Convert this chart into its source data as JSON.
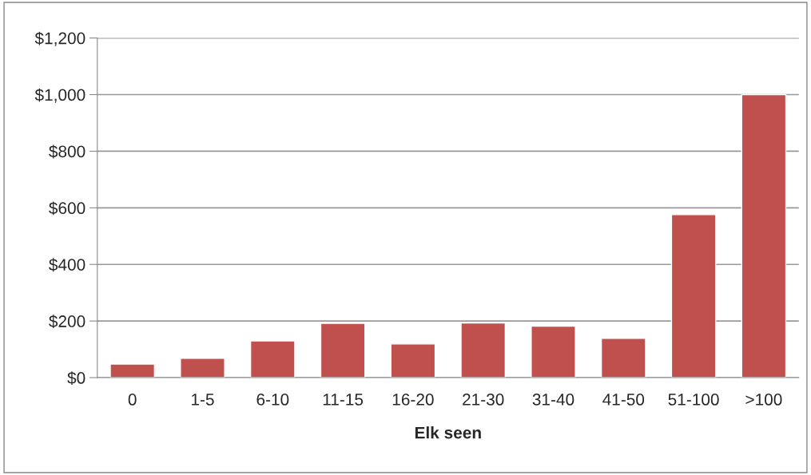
{
  "chart_data": {
    "type": "bar",
    "xlabel": "Elk seen",
    "categories": [
      "0",
      "1-5",
      "6-10",
      "11-15",
      "16-20",
      "21-30",
      "31-40",
      "41-50",
      "51-100",
      ">100"
    ],
    "values": [
      48,
      68,
      130,
      192,
      119,
      193,
      182,
      139,
      576,
      1000
    ],
    "color": "#c0504d",
    "ylim": [
      0,
      1200
    ],
    "yticks": [
      {
        "value": 0,
        "label": "$0"
      },
      {
        "value": 200,
        "label": "$200"
      },
      {
        "value": 400,
        "label": "$400"
      },
      {
        "value": 600,
        "label": "$600"
      },
      {
        "value": 800,
        "label": "$800"
      },
      {
        "value": 1000,
        "label": "$1,000"
      },
      {
        "value": 1200,
        "label": "$1,200"
      }
    ],
    "grid": "y",
    "legend": false
  }
}
